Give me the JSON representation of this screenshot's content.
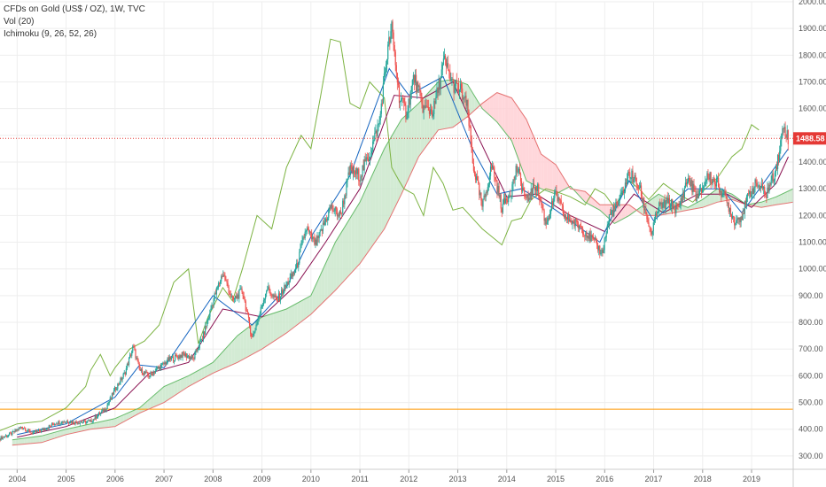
{
  "legend": {
    "title": "CFDs on Gold (US$ / OZ), 1W, TVC",
    "vol": "Vol (20)",
    "ichimoku": "Ichimoku (9, 26, 52, 26)"
  },
  "colors": {
    "up": "#26a69a",
    "down": "#ef5350",
    "wick": "#555555",
    "kumo_bull": "#c8e6c9",
    "kumo_bear": "#ffcdd2",
    "span_a": "#66bb6a",
    "span_b": "#e57373",
    "lagging": "#7cb342",
    "conversion": "#1565c0",
    "base": "#880e4f",
    "current_line": "#e53935",
    "support_line": "#ff9800",
    "grid": "#eeeeee"
  },
  "chart_data": {
    "type": "candlestick",
    "title": "CFDs on Gold (US$ / OZ), 1W, TVC",
    "xlabel": "",
    "ylabel": "",
    "ylim": [
      250,
      2000
    ],
    "xlim": [
      2003.65,
      2019.85
    ],
    "x_ticks": [
      "2004",
      "2005",
      "2006",
      "2007",
      "2008",
      "2009",
      "2010",
      "2011",
      "2012",
      "2013",
      "2014",
      "2015",
      "2016",
      "2017",
      "2018",
      "2019"
    ],
    "y_ticks": [
      "300.00",
      "400.00",
      "500.00",
      "600.00",
      "700.00",
      "800.00",
      "900.00",
      "1000.00",
      "1100.00",
      "1200.00",
      "1300.00",
      "1400.00",
      "1500.00",
      "1600.00",
      "1700.00",
      "1800.00",
      "1900.00",
      "2000.00"
    ],
    "current_price": 1488.58,
    "current_price_label": "1488.58",
    "horizontal_line": 475,
    "price_path": [
      [
        2003.65,
        365
      ],
      [
        2003.9,
        385
      ],
      [
        2004.1,
        410
      ],
      [
        2004.3,
        385
      ],
      [
        2004.5,
        395
      ],
      [
        2004.8,
        425
      ],
      [
        2005.0,
        430
      ],
      [
        2005.2,
        425
      ],
      [
        2005.5,
        430
      ],
      [
        2005.8,
        475
      ],
      [
        2006.0,
        550
      ],
      [
        2006.2,
        610
      ],
      [
        2006.37,
        710
      ],
      [
        2006.5,
        620
      ],
      [
        2006.7,
        600
      ],
      [
        2006.9,
        630
      ],
      [
        2007.1,
        660
      ],
      [
        2007.4,
        680
      ],
      [
        2007.6,
        665
      ],
      [
        2007.8,
        750
      ],
      [
        2008.0,
        880
      ],
      [
        2008.2,
        985
      ],
      [
        2008.4,
        880
      ],
      [
        2008.6,
        920
      ],
      [
        2008.8,
        740
      ],
      [
        2008.95,
        830
      ],
      [
        2009.1,
        930
      ],
      [
        2009.3,
        880
      ],
      [
        2009.5,
        940
      ],
      [
        2009.7,
        1000
      ],
      [
        2009.9,
        1150
      ],
      [
        2010.1,
        1090
      ],
      [
        2010.4,
        1230
      ],
      [
        2010.6,
        1200
      ],
      [
        2010.8,
        1370
      ],
      [
        2011.0,
        1350
      ],
      [
        2011.2,
        1430
      ],
      [
        2011.4,
        1550
      ],
      [
        2011.55,
        1800
      ],
      [
        2011.65,
        1900
      ],
      [
        2011.8,
        1650
      ],
      [
        2011.95,
        1580
      ],
      [
        2012.1,
        1720
      ],
      [
        2012.3,
        1600
      ],
      [
        2012.5,
        1590
      ],
      [
        2012.72,
        1780
      ],
      [
        2012.9,
        1690
      ],
      [
        2013.05,
        1670
      ],
      [
        2013.2,
        1600
      ],
      [
        2013.3,
        1400
      ],
      [
        2013.5,
        1230
      ],
      [
        2013.7,
        1390
      ],
      [
        2013.9,
        1230
      ],
      [
        2014.1,
        1300
      ],
      [
        2014.2,
        1380
      ],
      [
        2014.4,
        1250
      ],
      [
        2014.6,
        1320
      ],
      [
        2014.8,
        1170
      ],
      [
        2015.0,
        1280
      ],
      [
        2015.2,
        1190
      ],
      [
        2015.5,
        1160
      ],
      [
        2015.7,
        1120
      ],
      [
        2015.95,
        1060
      ],
      [
        2016.1,
        1200
      ],
      [
        2016.3,
        1250
      ],
      [
        2016.5,
        1360
      ],
      [
        2016.7,
        1310
      ],
      [
        2016.95,
        1130
      ],
      [
        2017.1,
        1230
      ],
      [
        2017.3,
        1250
      ],
      [
        2017.5,
        1220
      ],
      [
        2017.7,
        1340
      ],
      [
        2017.9,
        1260
      ],
      [
        2018.1,
        1350
      ],
      [
        2018.3,
        1320
      ],
      [
        2018.5,
        1250
      ],
      [
        2018.65,
        1180
      ],
      [
        2018.8,
        1200
      ],
      [
        2018.95,
        1280
      ],
      [
        2019.1,
        1320
      ],
      [
        2019.3,
        1280
      ],
      [
        2019.45,
        1350
      ],
      [
        2019.55,
        1420
      ],
      [
        2019.65,
        1540
      ],
      [
        2019.75,
        1488
      ]
    ],
    "lagging_span": [
      [
        2003.65,
        395
      ],
      [
        2004.0,
        420
      ],
      [
        2004.5,
        430
      ],
      [
        2005.0,
        480
      ],
      [
        2005.2,
        520
      ],
      [
        2005.4,
        560
      ],
      [
        2005.5,
        620
      ],
      [
        2005.7,
        680
      ],
      [
        2005.9,
        600
      ],
      [
        2006.0,
        630
      ],
      [
        2006.3,
        700
      ],
      [
        2006.6,
        730
      ],
      [
        2006.9,
        790
      ],
      [
        2007.2,
        950
      ],
      [
        2007.5,
        1000
      ],
      [
        2007.7,
        720
      ],
      [
        2007.9,
        820
      ],
      [
        2008.2,
        930
      ],
      [
        2008.4,
        880
      ],
      [
        2008.6,
        1000
      ],
      [
        2008.9,
        1200
      ],
      [
        2009.2,
        1150
      ],
      [
        2009.5,
        1380
      ],
      [
        2009.8,
        1500
      ],
      [
        2010.0,
        1450
      ],
      [
        2010.2,
        1650
      ],
      [
        2010.4,
        1860
      ],
      [
        2010.6,
        1850
      ],
      [
        2010.8,
        1620
      ],
      [
        2011.0,
        1600
      ],
      [
        2011.2,
        1700
      ],
      [
        2011.5,
        1640
      ],
      [
        2011.65,
        1380
      ],
      [
        2011.8,
        1330
      ],
      [
        2011.9,
        1300
      ],
      [
        2012.1,
        1280
      ],
      [
        2012.3,
        1200
      ],
      [
        2012.5,
        1380
      ],
      [
        2012.7,
        1320
      ],
      [
        2012.9,
        1220
      ],
      [
        2013.1,
        1230
      ],
      [
        2013.35,
        1180
      ],
      [
        2013.5,
        1150
      ],
      [
        2013.7,
        1120
      ],
      [
        2013.9,
        1090
      ],
      [
        2014.1,
        1180
      ],
      [
        2014.3,
        1190
      ],
      [
        2014.5,
        1260
      ],
      [
        2014.8,
        1300
      ],
      [
        2015.0,
        1290
      ],
      [
        2015.3,
        1270
      ],
      [
        2015.6,
        1240
      ],
      [
        2015.8,
        1300
      ],
      [
        2016.0,
        1280
      ],
      [
        2016.2,
        1230
      ],
      [
        2016.5,
        1330
      ],
      [
        2016.7,
        1300
      ],
      [
        2016.9,
        1260
      ],
      [
        2017.2,
        1320
      ],
      [
        2017.5,
        1280
      ],
      [
        2017.8,
        1250
      ],
      [
        2018.0,
        1290
      ],
      [
        2018.3,
        1340
      ],
      [
        2018.6,
        1420
      ],
      [
        2018.8,
        1450
      ],
      [
        2019.0,
        1540
      ],
      [
        2019.15,
        1520
      ]
    ],
    "span_a": [
      [
        2003.9,
        360
      ],
      [
        2004.5,
        375
      ],
      [
        2005.0,
        400
      ],
      [
        2005.5,
        420
      ],
      [
        2006.0,
        440
      ],
      [
        2006.5,
        480
      ],
      [
        2007.0,
        560
      ],
      [
        2007.5,
        600
      ],
      [
        2008.0,
        650
      ],
      [
        2008.5,
        750
      ],
      [
        2009.0,
        820
      ],
      [
        2009.5,
        850
      ],
      [
        2010.0,
        900
      ],
      [
        2010.5,
        1100
      ],
      [
        2011.0,
        1250
      ],
      [
        2011.5,
        1450
      ],
      [
        2011.85,
        1560
      ],
      [
        2012.2,
        1620
      ],
      [
        2012.6,
        1700
      ],
      [
        2012.9,
        1710
      ],
      [
        2013.2,
        1690
      ],
      [
        2013.5,
        1600
      ],
      [
        2013.8,
        1550
      ],
      [
        2014.1,
        1480
      ],
      [
        2014.4,
        1330
      ],
      [
        2014.7,
        1300
      ],
      [
        2015.0,
        1280
      ],
      [
        2015.3,
        1310
      ],
      [
        2015.6,
        1250
      ],
      [
        2015.9,
        1220
      ],
      [
        2016.2,
        1170
      ],
      [
        2016.5,
        1200
      ],
      [
        2016.8,
        1240
      ],
      [
        2017.1,
        1280
      ],
      [
        2017.4,
        1250
      ],
      [
        2017.7,
        1230
      ],
      [
        2018.0,
        1260
      ],
      [
        2018.3,
        1300
      ],
      [
        2018.6,
        1280
      ],
      [
        2018.9,
        1240
      ],
      [
        2019.2,
        1250
      ],
      [
        2019.5,
        1270
      ],
      [
        2019.85,
        1300
      ]
    ],
    "span_b": [
      [
        2003.9,
        340
      ],
      [
        2004.5,
        350
      ],
      [
        2005.0,
        380
      ],
      [
        2005.5,
        400
      ],
      [
        2006.0,
        410
      ],
      [
        2006.5,
        460
      ],
      [
        2007.0,
        500
      ],
      [
        2007.5,
        560
      ],
      [
        2008.0,
        610
      ],
      [
        2008.5,
        650
      ],
      [
        2009.0,
        700
      ],
      [
        2009.5,
        760
      ],
      [
        2010.0,
        830
      ],
      [
        2010.5,
        920
      ],
      [
        2011.0,
        1020
      ],
      [
        2011.5,
        1150
      ],
      [
        2011.85,
        1280
      ],
      [
        2012.2,
        1420
      ],
      [
        2012.6,
        1520
      ],
      [
        2012.9,
        1530
      ],
      [
        2013.2,
        1570
      ],
      [
        2013.5,
        1620
      ],
      [
        2013.8,
        1660
      ],
      [
        2014.1,
        1640
      ],
      [
        2014.4,
        1560
      ],
      [
        2014.7,
        1430
      ],
      [
        2015.0,
        1390
      ],
      [
        2015.3,
        1300
      ],
      [
        2015.6,
        1290
      ],
      [
        2015.9,
        1240
      ],
      [
        2016.2,
        1240
      ],
      [
        2016.5,
        1240
      ],
      [
        2016.8,
        1200
      ],
      [
        2017.1,
        1200
      ],
      [
        2017.4,
        1210
      ],
      [
        2017.7,
        1220
      ],
      [
        2018.0,
        1230
      ],
      [
        2018.3,
        1250
      ],
      [
        2018.6,
        1260
      ],
      [
        2018.9,
        1240
      ],
      [
        2019.2,
        1230
      ],
      [
        2019.5,
        1240
      ],
      [
        2019.85,
        1250
      ]
    ],
    "conversion_line": [
      [
        2004.0,
        380
      ],
      [
        2005.0,
        420
      ],
      [
        2006.0,
        520
      ],
      [
        2006.5,
        640
      ],
      [
        2007.0,
        630
      ],
      [
        2008.0,
        900
      ],
      [
        2008.8,
        790
      ],
      [
        2009.5,
        930
      ],
      [
        2010.0,
        1120
      ],
      [
        2010.8,
        1350
      ],
      [
        2011.6,
        1750
      ],
      [
        2012.0,
        1650
      ],
      [
        2012.7,
        1720
      ],
      [
        2013.3,
        1450
      ],
      [
        2013.8,
        1280
      ],
      [
        2014.3,
        1300
      ],
      [
        2015.0,
        1220
      ],
      [
        2015.9,
        1100
      ],
      [
        2016.5,
        1330
      ],
      [
        2017.0,
        1180
      ],
      [
        2017.7,
        1300
      ],
      [
        2018.4,
        1300
      ],
      [
        2018.8,
        1210
      ],
      [
        2019.2,
        1310
      ],
      [
        2019.75,
        1450
      ]
    ],
    "base_line": [
      [
        2004.0,
        370
      ],
      [
        2005.0,
        410
      ],
      [
        2006.0,
        480
      ],
      [
        2006.7,
        610
      ],
      [
        2007.5,
        650
      ],
      [
        2008.2,
        850
      ],
      [
        2009.0,
        820
      ],
      [
        2009.7,
        940
      ],
      [
        2010.3,
        1100
      ],
      [
        2011.0,
        1300
      ],
      [
        2011.7,
        1650
      ],
      [
        2012.3,
        1640
      ],
      [
        2012.9,
        1700
      ],
      [
        2013.4,
        1500
      ],
      [
        2014.0,
        1270
      ],
      [
        2014.6,
        1280
      ],
      [
        2015.3,
        1200
      ],
      [
        2016.0,
        1140
      ],
      [
        2016.6,
        1280
      ],
      [
        2017.2,
        1210
      ],
      [
        2017.9,
        1280
      ],
      [
        2018.5,
        1280
      ],
      [
        2019.0,
        1230
      ],
      [
        2019.5,
        1320
      ],
      [
        2019.75,
        1420
      ]
    ]
  }
}
